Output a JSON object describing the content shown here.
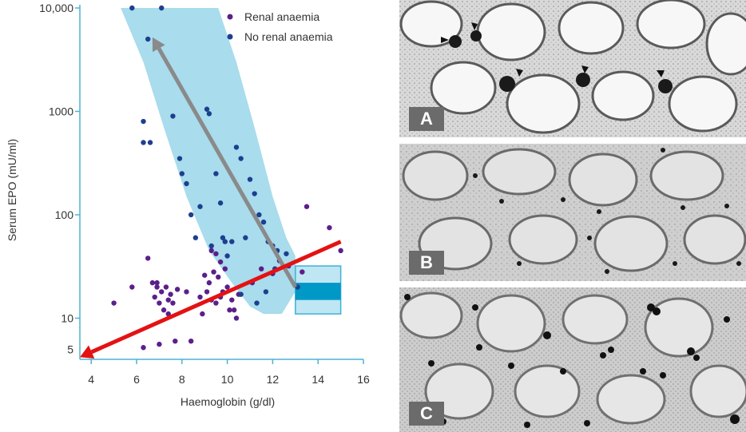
{
  "chart_data": {
    "type": "scatter",
    "xlabel": "Haemoglobin (g/dl)",
    "ylabel": "Serum EPO (mU/ml)",
    "xlim": [
      3.5,
      16
    ],
    "ylim": [
      4,
      10000
    ],
    "yscale": "log",
    "x_ticks": [
      "4",
      "6",
      "8",
      "10",
      "12",
      "14",
      "16"
    ],
    "y_ticks": [
      "5",
      "10",
      "100",
      "1000",
      "10,000"
    ],
    "legend_position": "top-right",
    "colors": {
      "renal": "#5b1f8a",
      "no_renal": "#1d3f8f",
      "band": "#a9dcec",
      "normal_box": "#0098c7",
      "grey_arrow": "#8a8a8a",
      "red_arrow": "#e41212"
    },
    "series": [
      {
        "name": "Renal anaemia",
        "points": [
          [
            5,
            14
          ],
          [
            5.8,
            20
          ],
          [
            6.3,
            5.2
          ],
          [
            6.5,
            38
          ],
          [
            6.7,
            22
          ],
          [
            6.8,
            16
          ],
          [
            6.9,
            20
          ],
          [
            7,
            14
          ],
          [
            7.1,
            18
          ],
          [
            7.2,
            12
          ],
          [
            7.3,
            20
          ],
          [
            7.4,
            15
          ],
          [
            7.5,
            17
          ],
          [
            7.6,
            14
          ],
          [
            7.7,
            6
          ],
          [
            7.8,
            19
          ],
          [
            7.0,
            5.6
          ],
          [
            6.9,
            22
          ],
          [
            7.4,
            11
          ],
          [
            8.2,
            18
          ],
          [
            8.4,
            6
          ],
          [
            8.8,
            16
          ],
          [
            9,
            26
          ],
          [
            9.1,
            18
          ],
          [
            9.2,
            22
          ],
          [
            9.3,
            15
          ],
          [
            9.4,
            28
          ],
          [
            9.5,
            14
          ],
          [
            9.6,
            25
          ],
          [
            9.7,
            35
          ],
          [
            9.8,
            18
          ],
          [
            9.9,
            30
          ],
          [
            10,
            20
          ],
          [
            10.1,
            12
          ],
          [
            10.2,
            15
          ],
          [
            10.3,
            12
          ],
          [
            10.4,
            10
          ],
          [
            10.5,
            17
          ],
          [
            9.3,
            45
          ],
          [
            9.5,
            42
          ],
          [
            8.9,
            11
          ],
          [
            11.1,
            22
          ],
          [
            11.5,
            30
          ],
          [
            12,
            27
          ],
          [
            12.3,
            36
          ],
          [
            12.7,
            32
          ],
          [
            13.3,
            28
          ],
          [
            13.5,
            120
          ],
          [
            14.5,
            75
          ],
          [
            15,
            45
          ],
          [
            9.7,
            16
          ]
        ]
      },
      {
        "name": "No renal anaemia",
        "points": [
          [
            5.8,
            10000
          ],
          [
            7.1,
            10000
          ],
          [
            6.5,
            5000
          ],
          [
            6.3,
            800
          ],
          [
            6.3,
            500
          ],
          [
            6.6,
            500
          ],
          [
            7.6,
            900
          ],
          [
            7.9,
            350
          ],
          [
            8,
            250
          ],
          [
            8.2,
            200
          ],
          [
            8.4,
            100
          ],
          [
            8.6,
            60
          ],
          [
            8.8,
            120
          ],
          [
            9.1,
            1050
          ],
          [
            9.2,
            950
          ],
          [
            9.3,
            50
          ],
          [
            9.5,
            250
          ],
          [
            9.7,
            130
          ],
          [
            9.8,
            60
          ],
          [
            9.9,
            55
          ],
          [
            10,
            40
          ],
          [
            10.2,
            55
          ],
          [
            10.4,
            450
          ],
          [
            10.6,
            350
          ],
          [
            10.8,
            60
          ],
          [
            11,
            220
          ],
          [
            11.2,
            160
          ],
          [
            11.4,
            100
          ],
          [
            11.6,
            85
          ],
          [
            11.8,
            55
          ],
          [
            12,
            50
          ],
          [
            12.2,
            45
          ],
          [
            10.6,
            17
          ],
          [
            11.3,
            14
          ],
          [
            11.7,
            18
          ],
          [
            12.1,
            30
          ],
          [
            12.6,
            42
          ],
          [
            13.1,
            20
          ]
        ]
      }
    ],
    "band": {
      "upper": [
        [
          3.5,
          10000
        ],
        [
          9.6,
          10000
        ],
        [
          10.4,
          3000
        ],
        [
          11.2,
          700
        ],
        [
          12.0,
          150
        ],
        [
          12.6,
          60
        ],
        [
          13.0,
          40
        ]
      ],
      "lower": [
        [
          13.0,
          18
        ],
        [
          12.4,
          11
        ],
        [
          11.6,
          11
        ],
        [
          11.0,
          13
        ],
        [
          10.2,
          22
        ],
        [
          9.2,
          45
        ],
        [
          8.2,
          150
        ],
        [
          7.2,
          700
        ],
        [
          6.3,
          3000
        ],
        [
          5.3,
          10000
        ],
        [
          3.5,
          10000
        ]
      ]
    },
    "normal_range": {
      "x": [
        13,
        15
      ],
      "y_outer": [
        11,
        32
      ],
      "y_inner": [
        15,
        22
      ]
    },
    "arrows": [
      {
        "color": "grey",
        "from": [
          13,
          20
        ],
        "to": [
          6.7,
          5200
        ]
      },
      {
        "color": "red",
        "from": [
          15,
          55
        ],
        "to": [
          3.5,
          4.2
        ]
      }
    ]
  },
  "micrographs": {
    "panels": [
      {
        "label": "A"
      },
      {
        "label": "B"
      },
      {
        "label": "C"
      }
    ]
  }
}
